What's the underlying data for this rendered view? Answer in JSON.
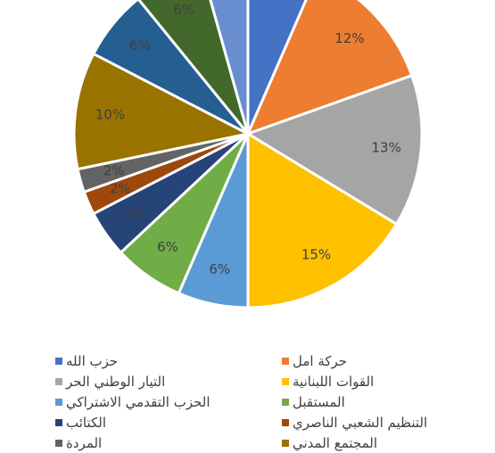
{
  "chart_data": {
    "type": "pie",
    "title": "",
    "slices": [
      {
        "label": "حزب الله",
        "value": 6,
        "display": "",
        "color": "#4472C4"
      },
      {
        "label": "حركة امل",
        "value": 12,
        "display": "12%",
        "color": "#ED7D31"
      },
      {
        "label": "التيار الوطني الحر",
        "value": 13,
        "display": "13%",
        "color": "#A5A5A5"
      },
      {
        "label": "القوات اللبنانية",
        "value": 15,
        "display": "15%",
        "color": "#FFC000"
      },
      {
        "label": "الحزب التقدمي  الاشتراكي",
        "value": 6,
        "display": "6%",
        "color": "#5B9BD5"
      },
      {
        "label": "المستقبل",
        "value": 6,
        "display": "6%",
        "color": "#70AD47"
      },
      {
        "label": "الكتائب",
        "value": 4,
        "display": "4%",
        "color": "#264478"
      },
      {
        "label": "التنظيم الشعبي الناصري",
        "value": 2,
        "display": "2%",
        "color": "#9E480E"
      },
      {
        "label": "المردة",
        "value": 2,
        "display": "2%",
        "color": "#636363"
      },
      {
        "label": "المجتمع المدني",
        "value": 10,
        "display": "10%",
        "color": "#997300"
      },
      {
        "label": "",
        "value": 6,
        "display": "6%",
        "color": "#255E91"
      },
      {
        "label": "",
        "value": 6,
        "display": "6%",
        "color": "#43682B"
      },
      {
        "label": "",
        "value": 4,
        "display": "",
        "color": "#698ED0"
      }
    ],
    "legend_position": "bottom"
  }
}
